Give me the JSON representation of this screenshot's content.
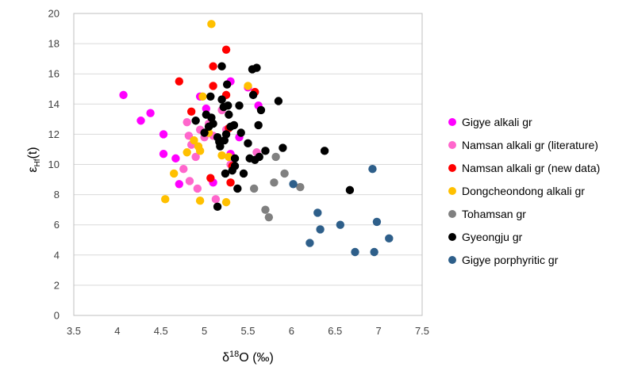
{
  "chart_data": {
    "type": "scatter",
    "xlabel": {
      "main": "δ",
      "sup": "18",
      "rest": "O (‰)"
    },
    "ylabel": {
      "main": "ε",
      "sub": "Hf",
      "rest": "(t)"
    },
    "xlim": [
      3.5,
      7.5
    ],
    "ylim": [
      0,
      20
    ],
    "xticks": [
      "3.5",
      "4",
      "4.5",
      "5",
      "5.5",
      "6",
      "6.5",
      "7",
      "7.5"
    ],
    "yticks": [
      "0",
      "2",
      "4",
      "6",
      "8",
      "10",
      "12",
      "14",
      "16",
      "18",
      "20"
    ],
    "legend_position": "right",
    "series": [
      {
        "name": "Gigye alkali gr",
        "color": "#ff00ff",
        "points": [
          [
            4.07,
            14.6
          ],
          [
            4.38,
            13.4
          ],
          [
            4.27,
            12.9
          ],
          [
            4.53,
            12.0
          ],
          [
            4.53,
            10.7
          ],
          [
            4.67,
            10.4
          ],
          [
            4.71,
            8.7
          ],
          [
            5.02,
            13.7
          ],
          [
            4.95,
            14.5
          ],
          [
            5.1,
            8.8
          ],
          [
            5.3,
            15.5
          ],
          [
            5.62,
            13.9
          ],
          [
            5.3,
            10.7
          ],
          [
            5.4,
            11.8
          ],
          [
            5.5,
            15.1
          ]
        ]
      },
      {
        "name": "Namsan alkali gr (literature)",
        "color": "#ff66cc",
        "points": [
          [
            4.76,
            9.7
          ],
          [
            4.8,
            12.8
          ],
          [
            4.82,
            11.9
          ],
          [
            4.83,
            8.9
          ],
          [
            4.85,
            11.3
          ],
          [
            4.9,
            10.5
          ],
          [
            4.92,
            8.4
          ],
          [
            4.95,
            12.3
          ],
          [
            5.0,
            11.8
          ],
          [
            5.05,
            12.7
          ],
          [
            5.1,
            11.9
          ],
          [
            5.13,
            7.7
          ],
          [
            5.2,
            13.6
          ],
          [
            5.25,
            12.3
          ],
          [
            5.3,
            10.0
          ],
          [
            5.6,
            10.8
          ]
        ]
      },
      {
        "name": "Namsan alkali gr (new data)",
        "color": "#ff0000",
        "points": [
          [
            4.71,
            15.5
          ],
          [
            4.85,
            13.5
          ],
          [
            5.1,
            16.5
          ],
          [
            5.1,
            15.2
          ],
          [
            5.25,
            17.6
          ],
          [
            5.25,
            14.6
          ],
          [
            5.28,
            12.4
          ],
          [
            5.3,
            8.8
          ],
          [
            5.07,
            9.1
          ],
          [
            5.32,
            9.9
          ],
          [
            5.58,
            14.8
          ]
        ]
      },
      {
        "name": "Dongcheondong alkali gr",
        "color": "#ffc000",
        "points": [
          [
            5.08,
            19.3
          ],
          [
            4.55,
            7.7
          ],
          [
            4.65,
            9.4
          ],
          [
            4.8,
            10.8
          ],
          [
            4.88,
            11.6
          ],
          [
            4.93,
            11.2
          ],
          [
            4.95,
            10.9
          ],
          [
            4.95,
            7.6
          ],
          [
            4.98,
            14.5
          ],
          [
            5.2,
            10.6
          ],
          [
            5.25,
            7.5
          ],
          [
            5.28,
            10.5
          ],
          [
            5.5,
            15.2
          ],
          [
            5.05,
            12.1
          ]
        ]
      },
      {
        "name": "Tohamsan gr",
        "color": "#808080",
        "points": [
          [
            5.57,
            8.4
          ],
          [
            5.7,
            7.0
          ],
          [
            5.74,
            6.5
          ],
          [
            5.8,
            8.8
          ],
          [
            5.82,
            10.5
          ],
          [
            5.92,
            9.4
          ],
          [
            6.1,
            8.5
          ]
        ]
      },
      {
        "name": "Gyeongju gr",
        "color": "#000000",
        "points": [
          [
            4.9,
            12.9
          ],
          [
            5.0,
            12.1
          ],
          [
            5.02,
            13.3
          ],
          [
            5.05,
            12.5
          ],
          [
            5.07,
            14.5
          ],
          [
            5.08,
            13.1
          ],
          [
            5.1,
            12.7
          ],
          [
            5.15,
            11.8
          ],
          [
            5.15,
            7.2
          ],
          [
            5.17,
            11.5
          ],
          [
            5.18,
            11.2
          ],
          [
            5.2,
            16.5
          ],
          [
            5.2,
            14.3
          ],
          [
            5.22,
            13.8
          ],
          [
            5.23,
            11.6
          ],
          [
            5.24,
            9.4
          ],
          [
            5.25,
            12.0
          ],
          [
            5.26,
            15.3
          ],
          [
            5.27,
            13.9
          ],
          [
            5.28,
            13.3
          ],
          [
            5.3,
            12.5
          ],
          [
            5.32,
            9.6
          ],
          [
            5.34,
            12.6
          ],
          [
            5.35,
            9.9
          ],
          [
            5.35,
            10.4
          ],
          [
            5.38,
            8.4
          ],
          [
            5.4,
            13.9
          ],
          [
            5.42,
            12.1
          ],
          [
            5.45,
            9.4
          ],
          [
            5.5,
            11.4
          ],
          [
            5.52,
            10.4
          ],
          [
            5.55,
            16.3
          ],
          [
            5.56,
            14.6
          ],
          [
            5.58,
            10.3
          ],
          [
            5.6,
            16.4
          ],
          [
            5.62,
            12.6
          ],
          [
            5.63,
            10.5
          ],
          [
            5.65,
            13.6
          ],
          [
            5.7,
            10.9
          ],
          [
            5.85,
            14.2
          ],
          [
            5.9,
            11.1
          ],
          [
            6.38,
            10.9
          ],
          [
            6.67,
            8.3
          ]
        ]
      },
      {
        "name": "Gigye porphyritic gr",
        "color": "#2e5f8a",
        "points": [
          [
            6.02,
            8.7
          ],
          [
            6.21,
            4.8
          ],
          [
            6.3,
            6.8
          ],
          [
            6.33,
            5.7
          ],
          [
            6.56,
            6.0
          ],
          [
            6.73,
            4.2
          ],
          [
            6.93,
            9.7
          ],
          [
            6.95,
            4.2
          ],
          [
            6.98,
            6.2
          ],
          [
            7.12,
            5.1
          ]
        ]
      }
    ]
  }
}
